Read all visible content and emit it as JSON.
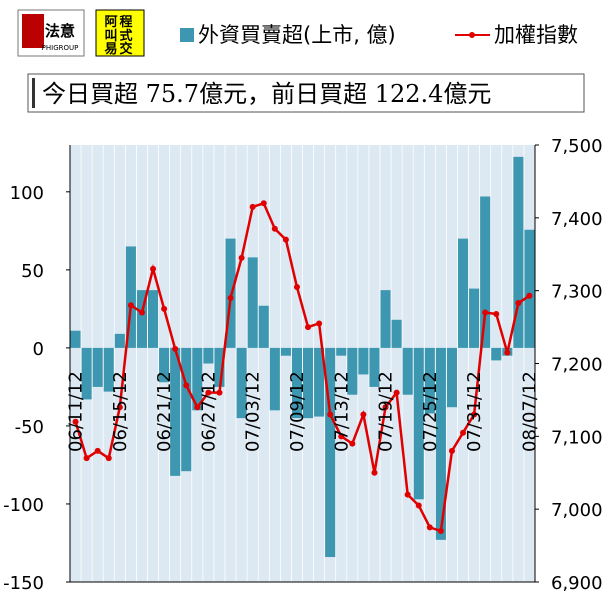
{
  "logos": {
    "first": {
      "text": "法意",
      "sub": "PHIGROUP"
    },
    "second": [
      "程",
      "式",
      "交",
      "易",
      "阿",
      "叫"
    ]
  },
  "note": "今日買超 75.7億元，前日買超 122.4億元",
  "chart_data": {
    "type": "bar_line",
    "categories": [
      "06/11/12",
      null,
      null,
      null,
      "06/15/12",
      null,
      null,
      null,
      "06/21/12",
      null,
      null,
      null,
      "06/27/12",
      null,
      null,
      null,
      "07/03/12",
      null,
      null,
      null,
      "07/09/12",
      null,
      null,
      null,
      "07/13/12",
      null,
      null,
      null,
      "07/19/12",
      null,
      null,
      null,
      "07/25/12",
      null,
      null,
      null,
      "07/31/12",
      null,
      null,
      null,
      null,
      "08/07/12"
    ],
    "series": [
      {
        "name": "外資買賣超(上市, 億)",
        "color": "#3d97b0",
        "type": "bar",
        "values": [
          11,
          -33,
          -25,
          -28,
          9,
          65,
          37,
          37,
          -22,
          -82,
          -79,
          -40,
          -10,
          -25,
          70,
          -45,
          58,
          27,
          -40,
          -5,
          -45,
          -45,
          -44,
          -134,
          -5,
          -30,
          -17,
          -25,
          37,
          18,
          -30,
          -97,
          -42,
          -123,
          -38,
          70,
          38,
          97,
          -8,
          -5,
          122.4,
          75.7
        ]
      },
      {
        "name": "加權指數",
        "color": "#e00000",
        "type": "line",
        "axis": "y2",
        "values": [
          7120,
          7070,
          7080,
          7070,
          7140,
          7280,
          7270,
          7330,
          7275,
          7220,
          7170,
          7140,
          7160,
          7160,
          7290,
          7345,
          7415,
          7420,
          7385,
          7370,
          7305,
          7250,
          7255,
          7130,
          7100,
          7090,
          7130,
          7050,
          7140,
          7160,
          7020,
          7005,
          6975,
          6970,
          7080,
          7105,
          7130,
          7270,
          7268,
          7215,
          7283,
          7293
        ]
      }
    ],
    "ylim": [
      -150,
      130
    ],
    "yticks": [
      -150,
      -100,
      -50,
      0,
      50,
      100
    ],
    "y2lim": [
      6900,
      7500
    ],
    "y2ticks": [
      {
        "value": 6900,
        "label": "6,900"
      },
      {
        "value": 7000,
        "label": "7,000"
      },
      {
        "value": 7100,
        "label": "7,100"
      },
      {
        "value": 7200,
        "label": "7,200"
      },
      {
        "value": 7300,
        "label": "7,300"
      },
      {
        "value": 7400,
        "label": "7,400"
      },
      {
        "value": 7500,
        "label": "7,500"
      }
    ]
  }
}
